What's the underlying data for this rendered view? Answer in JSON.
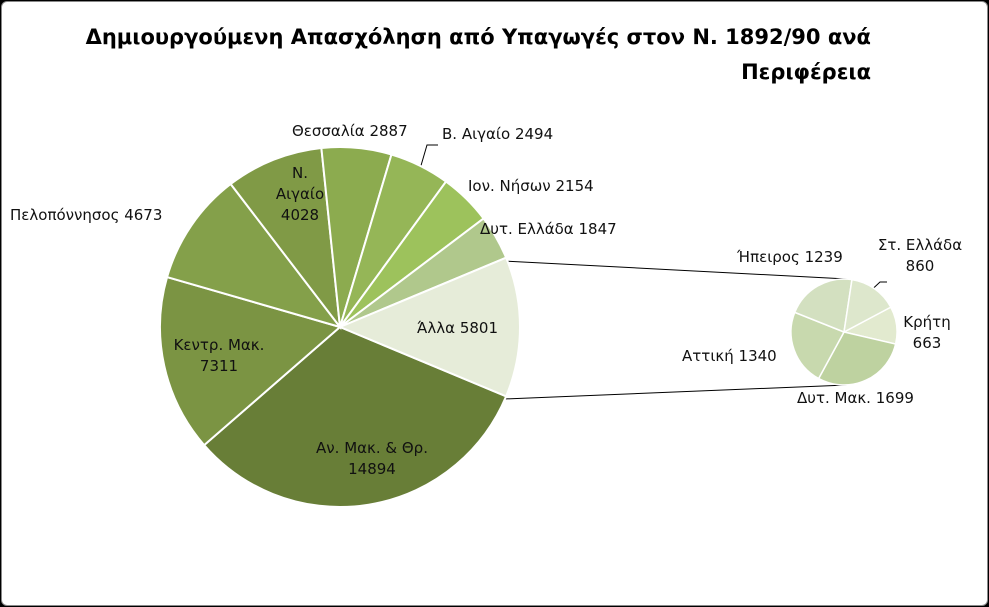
{
  "chart_data": [
    {
      "type": "pie",
      "title": "Δημιουργούμενη Απασχόληση από Υπαγωγές στον Ν. 1892/90 ανά Περιφέρεια",
      "categories": [
        "Αν. Μακ. & Θρ.",
        "Κεντρ. Μακ.",
        "Πελοπόννησος",
        "Ν. Αιγαίο",
        "Θεσσαλία",
        "Β. Αιγαίο",
        "Ιον. Νήσων",
        "Δυτ. Ελλάδα",
        "Άλλα"
      ],
      "values": [
        14894,
        7311,
        4673,
        4028,
        2887,
        2494,
        2154,
        1847,
        5801
      ],
      "colors": [
        "#687e37",
        "#7b9443",
        "#84a04a",
        "#809a46",
        "#8cab4f",
        "#95b657",
        "#9dc25c",
        "#b0c88c",
        "#e6ecd9"
      ]
    },
    {
      "type": "pie",
      "categories": [
        "Κρήτη",
        "Δυτ. Μακ.",
        "Αττική",
        "Ήπειρος",
        "Στ. Ελλάδα"
      ],
      "values": [
        663,
        1699,
        1340,
        1239,
        860
      ],
      "colors": [
        "#e2eacf",
        "#bed2a0",
        "#c8d9ae",
        "#d3e0c0",
        "#dde7cc"
      ]
    }
  ]
}
